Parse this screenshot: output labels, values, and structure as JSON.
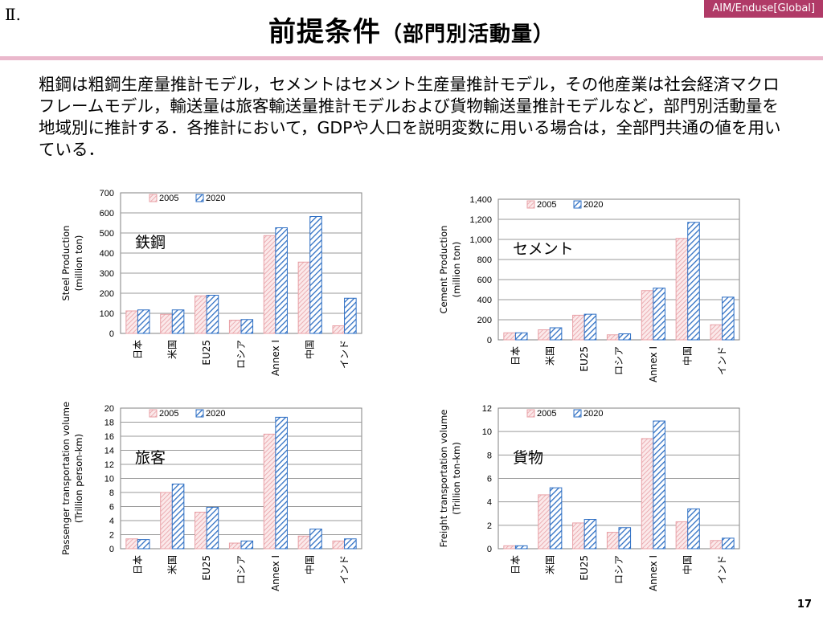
{
  "slide": {
    "section": "Ⅱ.",
    "title_main": "前提条件",
    "title_sub": "（部門別活動量）",
    "tag": "AIM/Enduse[Global]",
    "page_number": "17",
    "body_text": "粗鋼は粗鋼生産量推計モデル，セメントはセメント生産量推計モデル，その他産業は社会経済マクロフレームモデル，輸送量は旅客輸送量推計モデルおよび貨物輸送量推計モデルなど，部門別活動量を地域別に推計する．各推計において，GDPや人口を説明変数に用いる場合は，全部門共通の値を用いている．"
  },
  "colors": {
    "s2005": "#e8a0a6",
    "s2020": "#2e6fc4",
    "axis": "#808080",
    "grid": "#9a9a9a",
    "header_accent": "#eab8cc",
    "tag_bg": "#b03a67"
  },
  "chart_data": [
    {
      "type": "bar",
      "title": "鉄鋼",
      "ylabel": "Steel Production (million ton)",
      "categories": [
        "日本",
        "米国",
        "EU25",
        "ロシア",
        "Annex I",
        "中国",
        "インド"
      ],
      "ylim": [
        0,
        700
      ],
      "yticks": [
        "0",
        "100",
        "200",
        "300",
        "400",
        "500",
        "600",
        "700"
      ],
      "legend_position": "top",
      "grid": true,
      "series": [
        {
          "name": "2005",
          "values": [
            112,
            95,
            187,
            66,
            487,
            355,
            38
          ]
        },
        {
          "name": "2020",
          "values": [
            117,
            117,
            190,
            69,
            526,
            582,
            175
          ]
        }
      ]
    },
    {
      "type": "bar",
      "title": "セメント",
      "ylabel": "Cement Production (million ton)",
      "categories": [
        "日本",
        "米国",
        "EU25",
        "ロシア",
        "Annex I",
        "中国",
        "インド"
      ],
      "ylim": [
        0,
        1400
      ],
      "yticks": [
        "0",
        "200",
        "400",
        "600",
        "800",
        "1,000",
        "1,200",
        "1,400"
      ],
      "legend_position": "top",
      "grid": true,
      "series": [
        {
          "name": "2005",
          "values": [
            70,
            100,
            245,
            50,
            490,
            1010,
            150
          ]
        },
        {
          "name": "2020",
          "values": [
            70,
            120,
            255,
            60,
            515,
            1170,
            425
          ]
        }
      ]
    },
    {
      "type": "bar",
      "title": "旅客",
      "ylabel": "Passenger transportation volume (Trillion person-km)",
      "categories": [
        "日本",
        "米国",
        "EU25",
        "ロシア",
        "Annex I",
        "中国",
        "インド"
      ],
      "ylim": [
        0,
        20
      ],
      "yticks": [
        "0",
        "2",
        "4",
        "6",
        "8",
        "10",
        "12",
        "14",
        "16",
        "18",
        "20"
      ],
      "legend_position": "top",
      "grid": true,
      "series": [
        {
          "name": "2005",
          "values": [
            1.4,
            8.0,
            5.2,
            0.8,
            16.3,
            1.8,
            1.1
          ]
        },
        {
          "name": "2020",
          "values": [
            1.3,
            9.2,
            5.9,
            1.1,
            18.7,
            2.8,
            1.4
          ]
        }
      ]
    },
    {
      "type": "bar",
      "title": "貨物",
      "ylabel": "Freight transportation volume (Trillion ton-km)",
      "categories": [
        "日本",
        "米国",
        "EU25",
        "ロシア",
        "Annex I",
        "中国",
        "インド"
      ],
      "ylim": [
        0,
        12
      ],
      "yticks": [
        "0",
        "2",
        "4",
        "6",
        "8",
        "10",
        "12"
      ],
      "legend_position": "top",
      "grid": true,
      "series": [
        {
          "name": "2005",
          "values": [
            0.25,
            4.6,
            2.2,
            1.4,
            9.4,
            2.3,
            0.7
          ]
        },
        {
          "name": "2020",
          "values": [
            0.25,
            5.2,
            2.5,
            1.8,
            10.9,
            3.4,
            0.9
          ]
        }
      ]
    }
  ]
}
